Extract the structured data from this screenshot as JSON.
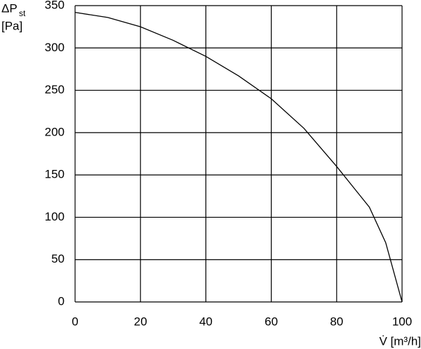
{
  "chart_data": {
    "type": "line",
    "y_label": "ΔP",
    "y_label_subscript": "st",
    "y_unit": "[Pa]",
    "x_label": "V̇ [m³/h]",
    "x": [
      0,
      10,
      20,
      30,
      40,
      50,
      60,
      70,
      80,
      90,
      95,
      100
    ],
    "series": [
      {
        "color": "#000000",
        "values": [
          342,
          336,
          325,
          309,
          290,
          267,
          240,
          205,
          160,
          112,
          70,
          0
        ]
      }
    ],
    "xlim": [
      0,
      100
    ],
    "xticks": [
      0,
      20,
      40,
      60,
      80,
      100
    ],
    "ylim": [
      0,
      350
    ],
    "yticks": [
      0,
      50,
      100,
      150,
      200,
      250,
      300,
      350
    ],
    "grid": true
  }
}
